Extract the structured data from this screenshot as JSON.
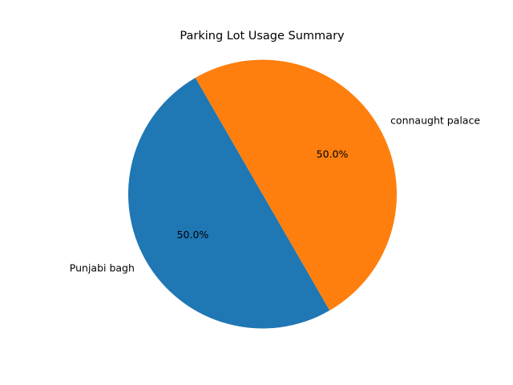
{
  "chart_data": {
    "type": "pie",
    "title": "Parking Lot Usage Summary",
    "start_angle": 120,
    "direction": "counterclockwise",
    "autopct_format": "%.1f%%",
    "slices": [
      {
        "label": "Punjabi bagh",
        "value": 50.0,
        "percent_label": "50.0%",
        "color": "#1f77b4"
      },
      {
        "label": "connaught palace",
        "value": 50.0,
        "percent_label": "50.0%",
        "color": "#ff7f0e"
      }
    ]
  }
}
